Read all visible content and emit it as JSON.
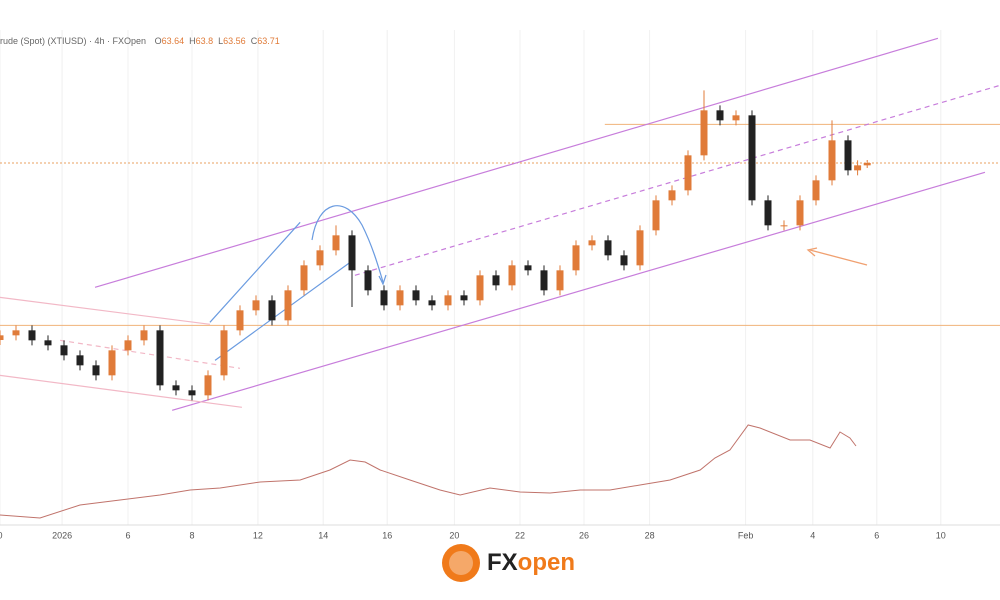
{
  "chart_data": {
    "type": "candlestick",
    "symbol": "rude (Spot) (XTIUSD) · 4h · FXOpen",
    "ohlc_letters": [
      "O",
      "H",
      "L",
      "C"
    ],
    "ohlc_last": [
      63.64,
      63.8,
      63.56,
      63.71
    ],
    "xlim": [
      0,
      31.25
    ],
    "ylim": [
      53,
      67.7
    ],
    "xticks": [
      {
        "value": 0,
        "label": "0"
      },
      {
        "value": 1.94,
        "label": "2026"
      },
      {
        "value": 4,
        "label": "6"
      },
      {
        "value": 6,
        "label": "8"
      },
      {
        "value": 8.06,
        "label": "12"
      },
      {
        "value": 10.1,
        "label": "14"
      },
      {
        "value": 12.1,
        "label": "16"
      },
      {
        "value": 14.2,
        "label": "20"
      },
      {
        "value": 16.25,
        "label": "22"
      },
      {
        "value": 18.25,
        "label": "26"
      },
      {
        "value": 20.3,
        "label": "28"
      },
      {
        "value": 23.3,
        "label": "Feb"
      },
      {
        "value": 25.4,
        "label": "4"
      },
      {
        "value": 27.4,
        "label": "6"
      },
      {
        "value": 29.4,
        "label": "10"
      }
    ],
    "grid": true,
    "up_color": "#e07b39",
    "down_color": "#222222",
    "x": [
      0,
      0.5,
      1,
      1.5,
      2,
      2.5,
      3,
      3.5,
      4,
      4.5,
      5,
      5.5,
      6,
      6.5,
      7,
      7.5,
      8,
      8.5,
      9,
      9.5,
      10,
      10.5,
      11,
      11.5,
      12,
      12.5,
      13,
      13.5,
      14,
      14.5,
      15,
      15.5,
      16,
      16.5,
      17,
      17.5,
      18,
      18.5,
      19,
      19.5,
      20,
      20.5,
      21,
      21.5,
      22,
      22.5,
      23,
      23.5,
      24,
      24.5,
      25,
      25.5,
      26,
      26.5,
      26.8,
      27.1
    ],
    "open": [
      58.4,
      58.54,
      58.69,
      58.39,
      58.24,
      57.94,
      57.64,
      57.34,
      58.09,
      58.39,
      58.69,
      57.04,
      56.89,
      56.74,
      57.34,
      58.69,
      59.29,
      59.59,
      58.99,
      59.89,
      60.64,
      61.09,
      61.54,
      60.49,
      59.89,
      59.44,
      59.89,
      59.59,
      59.44,
      59.74,
      59.59,
      60.34,
      60.04,
      60.64,
      60.49,
      59.89,
      60.49,
      61.24,
      61.39,
      60.94,
      60.64,
      61.69,
      62.59,
      62.89,
      63.94,
      65.29,
      64.99,
      65.14,
      62.59,
      61.84,
      61.84,
      62.59,
      63.19,
      64.39,
      63.49,
      63.64
    ],
    "high": [
      58.69,
      58.84,
      58.84,
      58.54,
      58.39,
      58.09,
      57.79,
      58.24,
      58.54,
      58.84,
      58.84,
      57.19,
      57.04,
      57.49,
      58.84,
      59.44,
      59.74,
      59.74,
      60.04,
      60.79,
      61.24,
      61.84,
      61.69,
      60.64,
      60.04,
      60.04,
      60.04,
      59.74,
      59.89,
      59.89,
      60.49,
      60.49,
      60.79,
      60.79,
      60.64,
      60.64,
      61.39,
      61.54,
      61.54,
      61.09,
      61.84,
      62.74,
      63.04,
      64.09,
      65.89,
      65.44,
      65.29,
      65.29,
      62.74,
      61.99,
      62.74,
      63.34,
      64.99,
      64.54,
      63.79,
      63.8
    ],
    "low": [
      58.25,
      58.39,
      58.24,
      58.09,
      57.79,
      57.49,
      57.19,
      57.19,
      57.94,
      58.24,
      56.89,
      56.74,
      56.59,
      56.59,
      57.19,
      58.54,
      59.14,
      58.84,
      58.84,
      59.74,
      60.49,
      60.94,
      59.39,
      59.74,
      59.29,
      59.29,
      59.44,
      59.29,
      59.29,
      59.44,
      59.44,
      59.89,
      59.89,
      60.34,
      59.74,
      59.74,
      60.34,
      61.09,
      60.79,
      60.49,
      60.49,
      61.54,
      62.44,
      62.74,
      63.79,
      64.84,
      64.84,
      62.44,
      61.69,
      61.69,
      61.69,
      62.44,
      63.04,
      63.34,
      63.34,
      63.56
    ],
    "close": [
      58.54,
      58.69,
      58.39,
      58.24,
      57.94,
      57.64,
      57.34,
      58.09,
      58.39,
      58.69,
      57.04,
      56.89,
      56.74,
      57.34,
      58.69,
      59.29,
      59.59,
      58.99,
      59.89,
      60.64,
      61.09,
      61.54,
      60.49,
      59.89,
      59.44,
      59.89,
      59.59,
      59.44,
      59.74,
      59.59,
      60.34,
      60.04,
      60.64,
      60.49,
      59.89,
      60.49,
      61.24,
      61.39,
      60.94,
      60.64,
      61.69,
      62.59,
      62.89,
      63.94,
      65.29,
      64.99,
      65.14,
      62.59,
      61.84,
      61.84,
      62.59,
      63.19,
      64.39,
      63.49,
      63.64,
      63.71
    ],
    "levels": [
      {
        "value": 64.87,
        "from": 18.9,
        "color": "#f0b27a",
        "dash": false
      },
      {
        "value": 58.84,
        "from": 0,
        "color": "#f0b27a",
        "dash": false
      },
      {
        "value": 63.71,
        "from": 0,
        "color": "#e8a060",
        "dash": true
      }
    ],
    "drawings": [
      {
        "x": [
          2.97,
          29.31
        ],
        "y": [
          59.98,
          67.45
        ],
        "color": "#c77ddb",
        "dash": false
      },
      {
        "x": [
          5.38,
          30.78
        ],
        "y": [
          56.29,
          63.43
        ],
        "color": "#c77ddb",
        "dash": false
      },
      {
        "x": [
          11.09,
          31.25
        ],
        "y": [
          60.34,
          66.04
        ],
        "color": "#c77ddb",
        "dash": true
      },
      {
        "x": [
          0,
          6.56
        ],
        "y": [
          59.68,
          58.87
        ],
        "color": "#f2b8c6",
        "dash": false
      },
      {
        "x": [
          0,
          7.56
        ],
        "y": [
          57.34,
          56.38
        ],
        "color": "#f2b8c6",
        "dash": false
      },
      {
        "x": [
          1.88,
          7.5
        ],
        "y": [
          58.39,
          57.55
        ],
        "color": "#f2b8c6",
        "dash": true
      },
      {
        "x": [
          6.56,
          9.38
        ],
        "y": [
          58.93,
          61.93
        ],
        "color": "#6a9be0",
        "dash": false
      },
      {
        "x": [
          6.72,
          10.94
        ],
        "y": [
          57.79,
          60.73
        ],
        "color": "#6a9be0",
        "dash": false
      }
    ],
    "indicator": {
      "color": "#c0736b",
      "ylim": [
        0,
        100
      ],
      "x": [
        0,
        1.25,
        2.5,
        3.75,
        5,
        5.94,
        6.88,
        8.13,
        9.38,
        10.31,
        10.94,
        11.41,
        11.88,
        12.81,
        13.75,
        14.38,
        15.31,
        16.25,
        17.19,
        18.13,
        19.06,
        20,
        20.94,
        21.88,
        22.34,
        22.81,
        23.38,
        23.75,
        24.69,
        25.31,
        25.94,
        26.25,
        26.56,
        26.75
      ],
      "values": [
        5,
        2,
        15,
        20,
        25,
        30,
        32,
        38,
        40,
        50,
        60,
        58,
        50,
        40,
        30,
        25,
        32,
        28,
        27,
        30,
        30,
        35,
        40,
        50,
        62,
        70,
        95,
        92,
        80,
        80,
        72,
        88,
        82,
        74
      ]
    },
    "logo": [
      "FX",
      "open"
    ]
  }
}
